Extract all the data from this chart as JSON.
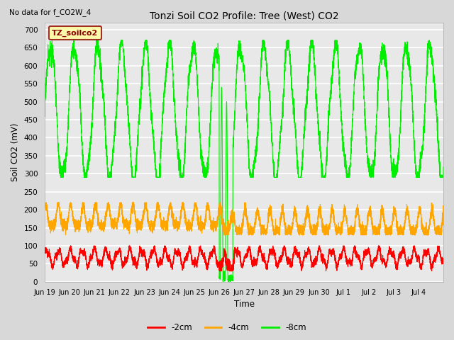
{
  "title": "Tonzi Soil CO2 Profile: Tree (West) CO2",
  "subtitle": "No data for f_CO2W_4",
  "ylabel": "Soil CO2 (mV)",
  "xlabel": "Time",
  "legend_label": "TZ_soilco2",
  "legend_box_color": "#FFFF99",
  "legend_box_edge": "#8B0000",
  "legend_text_color": "#8B0000",
  "ylim": [
    0,
    720
  ],
  "yticks": [
    0,
    50,
    100,
    150,
    200,
    250,
    300,
    350,
    400,
    450,
    500,
    550,
    600,
    650,
    700
  ],
  "line_2cm_color": "#FF0000",
  "line_4cm_color": "#FFA500",
  "line_8cm_color": "#00EE00",
  "background_color": "#D8D8D8",
  "plot_bg_color": "#E8E8E8",
  "grid_color": "#FFFFFF",
  "x_tick_labels": [
    "Jun 19",
    "Jun 20",
    "Jun 21",
    "Jun 22",
    "Jun 23",
    "Jun 24",
    "Jun 25",
    "Jun 26",
    "Jun 27",
    "Jun 28",
    "Jun 29",
    "Jun 30",
    "Jul 1",
    "Jul 2",
    "Jul 3",
    "Jul 4"
  ]
}
